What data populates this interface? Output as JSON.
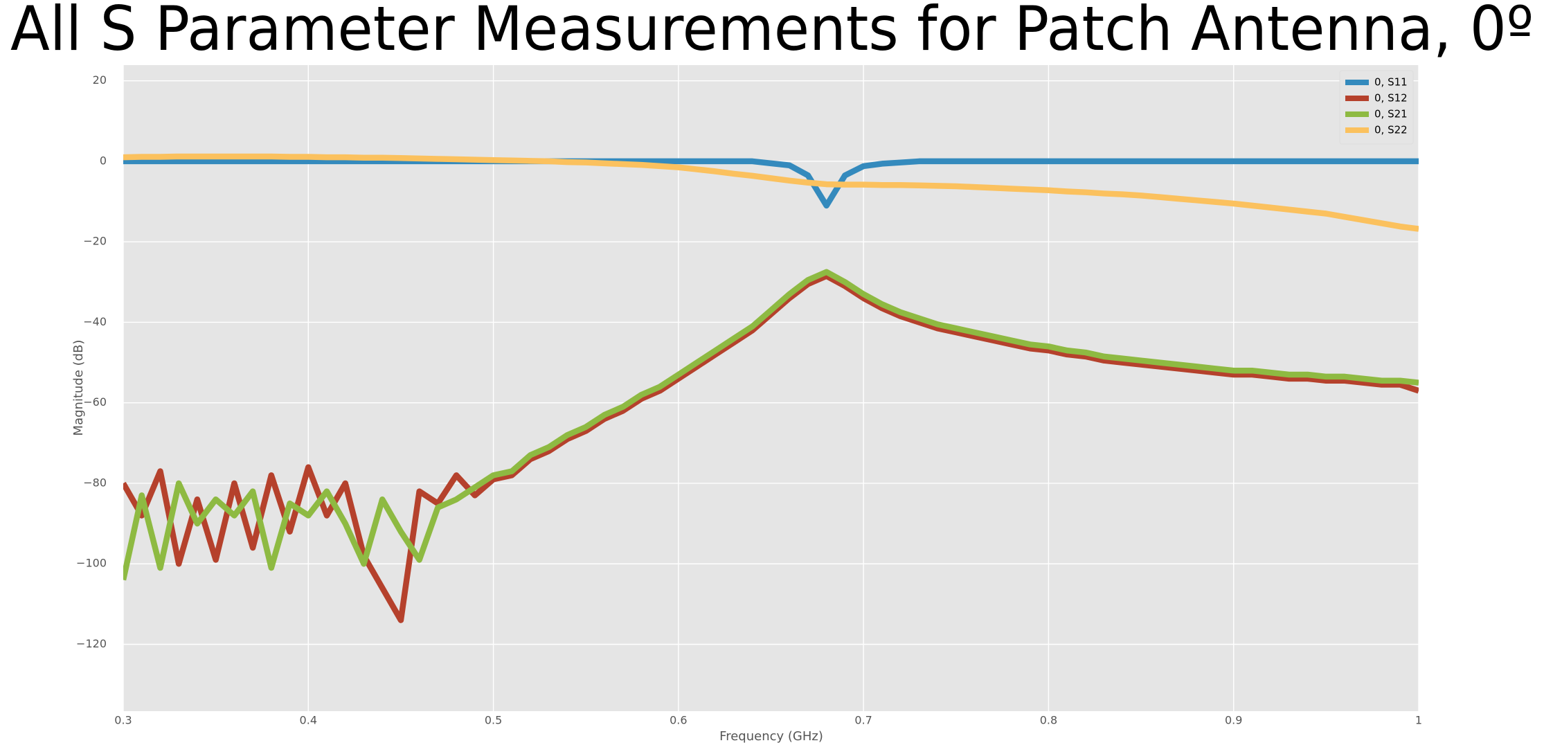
{
  "chart_data": {
    "type": "line",
    "title": "All S Parameter Measurements for Patch Antenna, 0º",
    "x_label": "Frequency (GHz)",
    "y_label": "Magnitude (dB)",
    "x": [
      0.3,
      0.31,
      0.32,
      0.33,
      0.34,
      0.35,
      0.36,
      0.37,
      0.38,
      0.39,
      0.4,
      0.41,
      0.42,
      0.43,
      0.44,
      0.45,
      0.46,
      0.47,
      0.48,
      0.49,
      0.5,
      0.51,
      0.52,
      0.53,
      0.54,
      0.55,
      0.56,
      0.57,
      0.58,
      0.59,
      0.6,
      0.61,
      0.62,
      0.63,
      0.64,
      0.65,
      0.66,
      0.67,
      0.68,
      0.69,
      0.7,
      0.71,
      0.72,
      0.73,
      0.74,
      0.75,
      0.76,
      0.77,
      0.78,
      0.79,
      0.8,
      0.81,
      0.82,
      0.83,
      0.84,
      0.85,
      0.86,
      0.87,
      0.88,
      0.89,
      0.9,
      0.91,
      0.92,
      0.93,
      0.94,
      0.95,
      0.96,
      0.97,
      0.98,
      0.99,
      1.0
    ],
    "series": [
      {
        "name": "0, S11",
        "color": "#348abd",
        "values": [
          0,
          0,
          0,
          0,
          0,
          0,
          0,
          0,
          0,
          0,
          0,
          0,
          0,
          0,
          0,
          0,
          0,
          0,
          0,
          0,
          0,
          0,
          0,
          0,
          0,
          0,
          0,
          0,
          0,
          0,
          0,
          0,
          0,
          0,
          0,
          -0.5,
          -1,
          -3.5,
          -11,
          -3.5,
          -1.2,
          -0.6,
          -0.3,
          0,
          0,
          0,
          0,
          0,
          0,
          0,
          0,
          0,
          0,
          0,
          0,
          0,
          0,
          0,
          0,
          0,
          0,
          0,
          0,
          0,
          0,
          0,
          0,
          0,
          0,
          0,
          0
        ]
      },
      {
        "name": "0, S12",
        "color": "#b5412c",
        "values": [
          -80,
          -88,
          -77,
          -100,
          -84,
          -99,
          -80,
          -96,
          -78,
          -92,
          -76,
          -88,
          -80,
          -98,
          -106,
          -114,
          -82,
          -85,
          -78,
          -83,
          -79,
          -78,
          -74,
          -72,
          -69,
          -67,
          -64,
          -62,
          -59,
          -57,
          -54,
          -51,
          -48,
          -45,
          -42,
          -38,
          -34,
          -30.5,
          -28.5,
          -31,
          -34,
          -36.5,
          -38.5,
          -40,
          -41.5,
          -42.5,
          -43.5,
          -44.5,
          -45.5,
          -46.5,
          -47,
          -48,
          -48.5,
          -49.5,
          -50,
          -50.5,
          -51,
          -51.5,
          -52,
          -52.5,
          -53,
          -53,
          -53.5,
          -54,
          -54,
          -54.5,
          -54.5,
          -55,
          -55.5,
          -55.5,
          -57
        ]
      },
      {
        "name": "0, S21",
        "color": "#8eba42",
        "values": [
          -104,
          -83,
          -101,
          -80,
          -90,
          -84,
          -88,
          -82,
          -101,
          -85,
          -88,
          -82,
          -90,
          -100,
          -84,
          -92,
          -99,
          -86,
          -84,
          -81,
          -78,
          -77,
          -73,
          -71,
          -68,
          -66,
          -63,
          -61,
          -58,
          -56,
          -53,
          -50,
          -47,
          -44,
          -41,
          -37,
          -33,
          -29.5,
          -27.5,
          -30,
          -33,
          -35.5,
          -37.5,
          -39,
          -40.5,
          -41.5,
          -42.5,
          -43.5,
          -44.5,
          -45.5,
          -46,
          -47,
          -47.5,
          -48.5,
          -49,
          -49.5,
          -50,
          -50.5,
          -51,
          -51.5,
          -52,
          -52,
          -52.5,
          -53,
          -53,
          -53.5,
          -53.5,
          -54,
          -54.5,
          -54.5,
          -55
        ]
      },
      {
        "name": "0, S22",
        "color": "#fbc15e",
        "values": [
          1.0,
          1.1,
          1.1,
          1.2,
          1.2,
          1.2,
          1.2,
          1.2,
          1.2,
          1.1,
          1.1,
          1.0,
          1.0,
          0.9,
          0.9,
          0.8,
          0.7,
          0.6,
          0.5,
          0.4,
          0.3,
          0.2,
          0.1,
          0,
          -0.2,
          -0.3,
          -0.5,
          -0.7,
          -0.9,
          -1.2,
          -1.5,
          -2,
          -2.5,
          -3.1,
          -3.6,
          -4.2,
          -4.8,
          -5.3,
          -5.7,
          -5.8,
          -5.8,
          -5.9,
          -5.9,
          -6.0,
          -6.1,
          -6.2,
          -6.4,
          -6.6,
          -6.8,
          -7.0,
          -7.2,
          -7.5,
          -7.7,
          -8.0,
          -8.2,
          -8.5,
          -8.9,
          -9.3,
          -9.7,
          -10.1,
          -10.5,
          -11,
          -11.5,
          -12,
          -12.5,
          -13,
          -13.8,
          -14.6,
          -15.4,
          -16.2,
          -16.8
        ]
      }
    ],
    "xlim": [
      0.3,
      1
    ],
    "xticks": [
      0.3,
      0.4,
      0.5,
      0.6,
      0.7,
      0.8,
      0.9,
      1
    ],
    "ylim": [
      -136.6,
      23.9
    ],
    "yticks": [
      20,
      0,
      {
        "value": -20,
        "label": "−20"
      },
      {
        "value": -40,
        "label": "−40"
      },
      {
        "value": -60,
        "label": "−60"
      },
      {
        "value": -80,
        "label": "−80"
      },
      {
        "value": -100,
        "label": "−100"
      },
      {
        "value": -120,
        "label": "−120"
      }
    ],
    "grid": true,
    "legend": "upper right"
  }
}
